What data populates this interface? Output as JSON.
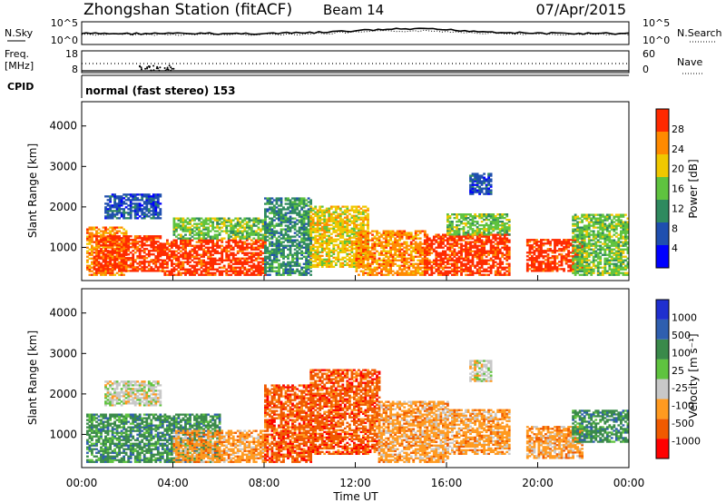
{
  "header": {
    "station": "Zhongshan Station (fitACF)",
    "beam": "Beam 14",
    "date": "07/Apr/2015"
  },
  "top_panels": {
    "nsky_label": "N.Sky",
    "nsky_ticks": [
      "10^5",
      "10^0"
    ],
    "nsearch_label": "N.Search",
    "nsearch_ticks": [
      "10^5",
      "10^0"
    ],
    "freq_label": "Freq.",
    "freq_unit": "[MHz]",
    "freq_ticks": [
      "18",
      "8"
    ],
    "nave_label": "Nave",
    "nave_ticks": [
      "60",
      "0"
    ],
    "cpid_label": "CPID",
    "cpid_text": "normal (fast stereo) 153"
  },
  "chart_data": [
    {
      "type": "heatmap",
      "name": "power",
      "ylabel": "Slant Range [km]",
      "yticks": [
        "4000",
        "3000",
        "2000",
        "1000"
      ],
      "ylim": [
        180,
        4600
      ],
      "xlim_hours": [
        0,
        24
      ],
      "colorbar_label": "Power [dB]",
      "colorbar_ticks": [
        "28",
        "24",
        "20",
        "16",
        "12",
        "8",
        "4"
      ],
      "colors": [
        "#0000ff",
        "#1f4faf",
        "#2f8a5f",
        "#5fc33f",
        "#f0c800",
        "#ff8a00",
        "#ff2a00"
      ],
      "regions": [
        {
          "t0": 0.2,
          "t1": 2.0,
          "r0": 300,
          "r1": 1500,
          "level": 5
        },
        {
          "t0": 0.5,
          "t1": 3.5,
          "r0": 400,
          "r1": 1300,
          "level": 6
        },
        {
          "t0": 1.0,
          "t1": 3.5,
          "r0": 1700,
          "r1": 2300,
          "level": 1
        },
        {
          "t0": 3.5,
          "t1": 8.0,
          "r0": 300,
          "r1": 1200,
          "level": 6
        },
        {
          "t0": 4.0,
          "t1": 8.0,
          "r0": 1200,
          "r1": 1700,
          "level": 3
        },
        {
          "t0": 8.0,
          "t1": 10.0,
          "r0": 300,
          "r1": 2200,
          "level": 2
        },
        {
          "t0": 10.0,
          "t1": 12.5,
          "r0": 500,
          "r1": 2000,
          "level": 4
        },
        {
          "t0": 12.0,
          "t1": 15.0,
          "r0": 300,
          "r1": 1400,
          "level": 5
        },
        {
          "t0": 15.0,
          "t1": 18.8,
          "r0": 300,
          "r1": 1300,
          "level": 6
        },
        {
          "t0": 16.0,
          "t1": 18.8,
          "r0": 1300,
          "r1": 1800,
          "level": 3
        },
        {
          "t0": 17.0,
          "t1": 18.0,
          "r0": 2300,
          "r1": 2800,
          "level": 1
        },
        {
          "t0": 19.5,
          "t1": 22.0,
          "r0": 400,
          "r1": 1200,
          "level": 6
        },
        {
          "t0": 21.5,
          "t1": 24.0,
          "r0": 300,
          "r1": 1800,
          "level": 3
        }
      ]
    },
    {
      "type": "heatmap",
      "name": "velocity",
      "ylabel": "Slant Range [km]",
      "yticks": [
        "4000",
        "3000",
        "2000",
        "1000"
      ],
      "ylim": [
        180,
        4600
      ],
      "xlim_hours": [
        0,
        24
      ],
      "colorbar_label": "Velocity [m s⁻¹]",
      "colorbar_ticks": [
        "1000",
        "500",
        "100",
        "25",
        "-25",
        "-100",
        "-500",
        "-1000"
      ],
      "colors": [
        "#ff0000",
        "#f05a00",
        "#ff9a20",
        "#c8c8c8",
        "#5fc33f",
        "#3a8a4a",
        "#2f5faf",
        "#1f2fcf"
      ],
      "regions": [
        {
          "t0": 0.2,
          "t1": 6.0,
          "r0": 300,
          "r1": 1500,
          "level": 5
        },
        {
          "t0": 1.0,
          "t1": 3.5,
          "r0": 1700,
          "r1": 2300,
          "level": 3
        },
        {
          "t0": 4.0,
          "t1": 8.0,
          "r0": 300,
          "r1": 1100,
          "level": 2
        },
        {
          "t0": 8.0,
          "t1": 10.0,
          "r0": 300,
          "r1": 2200,
          "level": 1
        },
        {
          "t0": 10.0,
          "t1": 13.0,
          "r0": 500,
          "r1": 2600,
          "level": 1
        },
        {
          "t0": 13.0,
          "t1": 16.0,
          "r0": 300,
          "r1": 1800,
          "level": 2
        },
        {
          "t0": 16.0,
          "t1": 18.8,
          "r0": 500,
          "r1": 1600,
          "level": 2
        },
        {
          "t0": 17.0,
          "t1": 18.0,
          "r0": 2300,
          "r1": 2800,
          "level": 3
        },
        {
          "t0": 19.5,
          "t1": 22.0,
          "r0": 400,
          "r1": 1200,
          "level": 2
        },
        {
          "t0": 21.5,
          "t1": 24.0,
          "r0": 800,
          "r1": 1600,
          "level": 5
        }
      ]
    }
  ],
  "x_axis": {
    "ticks": [
      "00:00",
      "04:00",
      "08:00",
      "12:00",
      "16:00",
      "20:00",
      "00:00"
    ],
    "label": "Time UT"
  }
}
